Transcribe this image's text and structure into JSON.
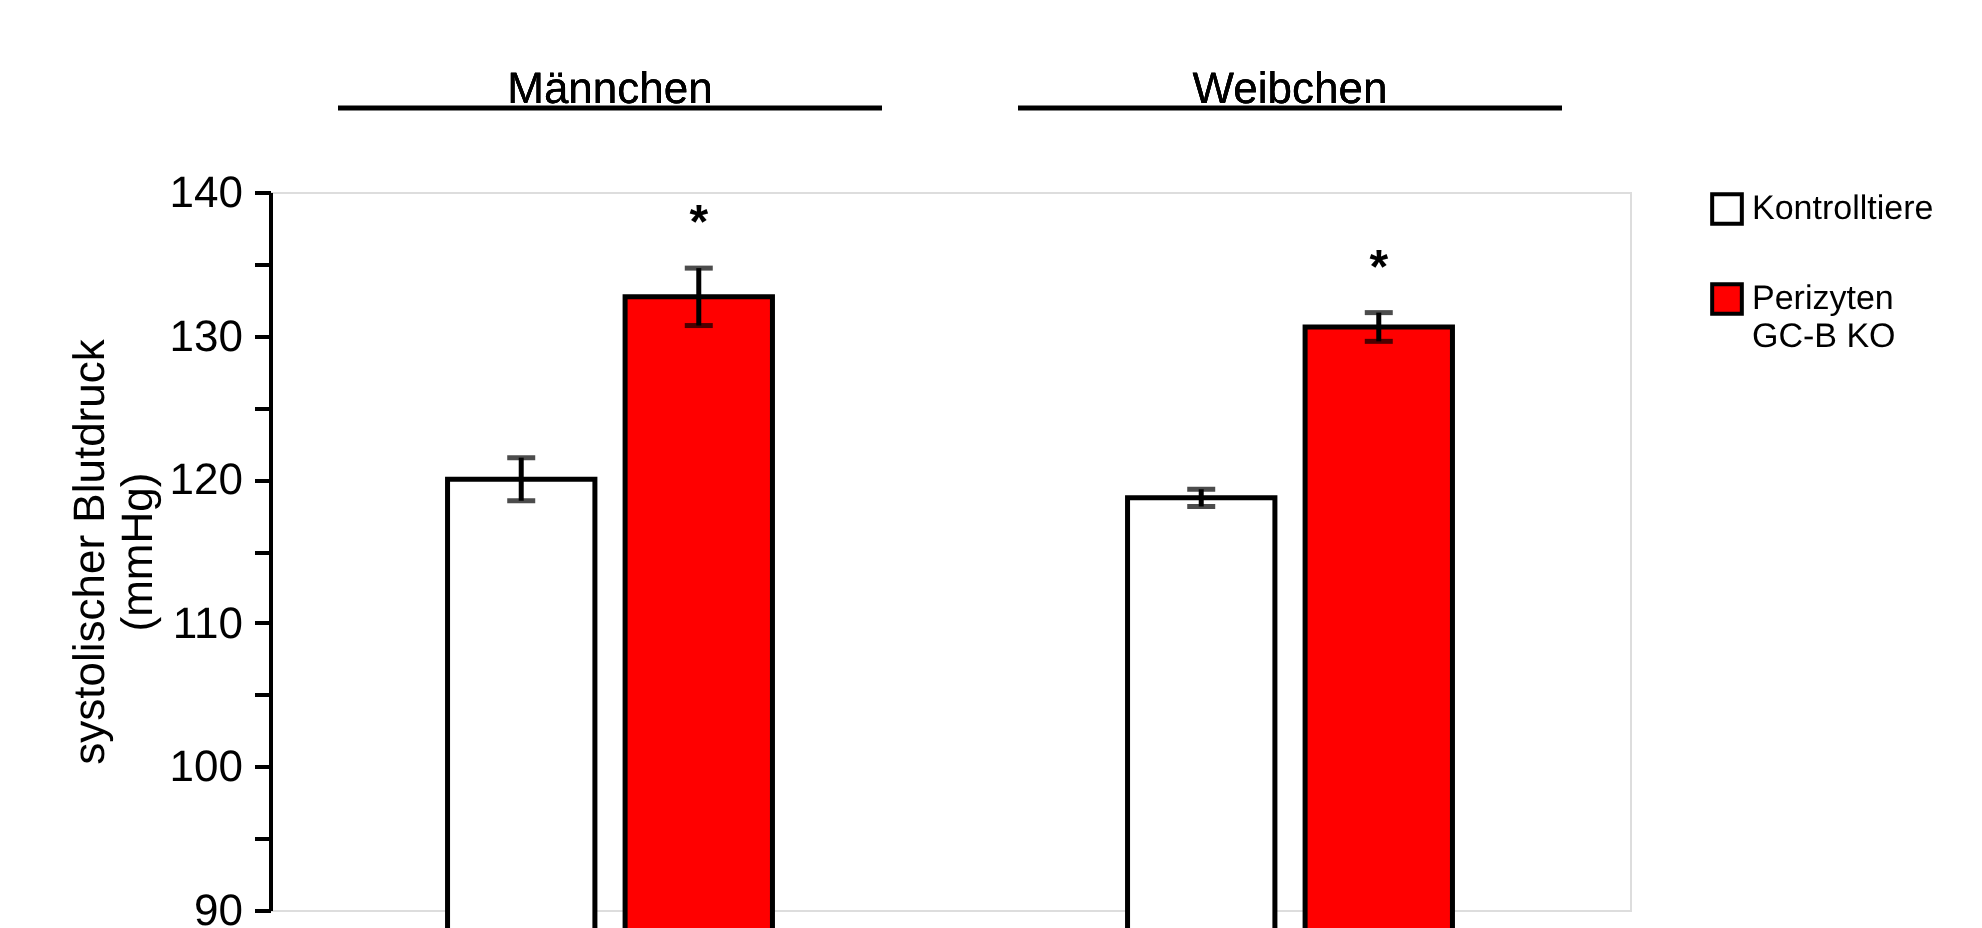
{
  "chart_data": {
    "type": "bar",
    "categories": [
      "Männchen",
      "Weibchen"
    ],
    "ylabel": "systolischer Blutdruck (mmHg)",
    "series": [
      {
        "name": "Kontrolltiere",
        "color": "#ffffff",
        "values": [
          120.0,
          118.7
        ],
        "errors": [
          1.5,
          0.6
        ]
      },
      {
        "name": "Perizyten GC-B KO",
        "color": "#ff0000",
        "values": [
          132.7,
          130.6
        ],
        "errors": [
          2.0,
          1.0
        ]
      }
    ],
    "ylim": [
      90,
      140
    ],
    "yticks": [
      90,
      {
        "value": 95,
        "label": null
      },
      100,
      {
        "value": 105,
        "label": null
      },
      110,
      {
        "value": 115,
        "label": null
      },
      120,
      {
        "value": 125,
        "label": null
      },
      130,
      {
        "value": 135,
        "label": null
      },
      140
    ],
    "annotations": [
      "*",
      "*"
    ],
    "legend": "top right",
    "grid": false
  }
}
